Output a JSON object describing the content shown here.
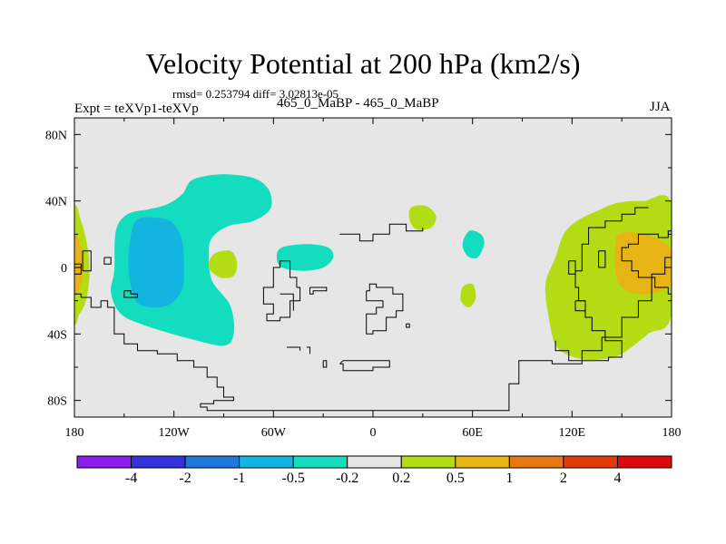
{
  "header": {
    "title": "Velocity Potential at 200 hPa (km2/s)",
    "stats": "rmsd= 0.253794 diff= 3.02813e-05",
    "expt": "Expt = teXVp1-teXVp",
    "case": "465_0_MaBP - 465_0_MaBP",
    "season": "JJA"
  },
  "chart_data": {
    "type": "heatmap",
    "title": "Velocity Potential at 200 hPa (km2/s)",
    "subtitle": "rmsd= 0.253794 diff= 3.02813e-05",
    "xlabel": "",
    "ylabel": "",
    "xlim": [
      -180,
      180
    ],
    "ylim": [
      -90,
      90
    ],
    "x_ticks": [
      {
        "value": -180,
        "label": "180"
      },
      {
        "value": -120,
        "label": "120W"
      },
      {
        "value": -60,
        "label": "60W"
      },
      {
        "value": 0,
        "label": "0"
      },
      {
        "value": 60,
        "label": "60E"
      },
      {
        "value": 120,
        "label": "120E"
      },
      {
        "value": 180,
        "label": "180"
      }
    ],
    "y_ticks": [
      {
        "value": 80,
        "label": "80N"
      },
      {
        "value": 40,
        "label": "40N"
      },
      {
        "value": 0,
        "label": "0"
      },
      {
        "value": -40,
        "label": "40S"
      },
      {
        "value": -80,
        "label": "80S"
      }
    ],
    "colorbar": {
      "colors": [
        "#8b1de8",
        "#3232d8",
        "#1e78dc",
        "#14b4e0",
        "#14dcbe",
        "#e6e6e6",
        "#b4dc14",
        "#e6b414",
        "#e67814",
        "#e03c0a",
        "#dc0a0a"
      ],
      "labels": [
        "-4",
        "-2",
        "-1",
        "-0.5",
        "-0.2",
        "0.2",
        "0.5",
        "1",
        "2",
        "4"
      ]
    },
    "regions": [
      {
        "name": "positive-west-edge",
        "level": "0.2 to 0.5",
        "points": [
          [
            -180,
            34
          ],
          [
            -176,
            28
          ],
          [
            -172,
            12
          ],
          [
            -171,
            -5
          ],
          [
            -173,
            -20
          ],
          [
            -177,
            -28
          ],
          [
            -180,
            -30
          ]
        ]
      },
      {
        "name": "orange-west-edge",
        "level": "0.5 to 1",
        "points": [
          [
            -180,
            18
          ],
          [
            -176,
            13
          ],
          [
            -175,
            0
          ],
          [
            -176,
            -10
          ],
          [
            -180,
            -15
          ]
        ]
      },
      {
        "name": "negative-large-pacific",
        "level": "-0.5 to -0.2",
        "points": [
          [
            -115,
            44
          ],
          [
            -110,
            52
          ],
          [
            -101,
            55
          ],
          [
            -90,
            56
          ],
          [
            -77,
            55
          ],
          [
            -68,
            52
          ],
          [
            -62,
            45
          ],
          [
            -62,
            35
          ],
          [
            -72,
            28
          ],
          [
            -87,
            25
          ],
          [
            -97,
            18
          ],
          [
            -99,
            8
          ],
          [
            -97,
            -8
          ],
          [
            -86,
            -23
          ],
          [
            -84,
            -40
          ],
          [
            -90,
            -47
          ],
          [
            -110,
            -43
          ],
          [
            -137,
            -35
          ],
          [
            -152,
            -28
          ],
          [
            -158,
            -15
          ],
          [
            -156,
            -2
          ],
          [
            -155,
            22
          ],
          [
            -148,
            32
          ],
          [
            -135,
            35
          ],
          [
            -124,
            38
          ]
        ]
      },
      {
        "name": "negative-core",
        "level": "-1 to -0.5",
        "points": [
          [
            -143,
            28
          ],
          [
            -132,
            30
          ],
          [
            -121,
            27
          ],
          [
            -115,
            16
          ],
          [
            -114,
            -2
          ],
          [
            -115,
            -13
          ],
          [
            -122,
            -22
          ],
          [
            -134,
            -24
          ],
          [
            -143,
            -20
          ],
          [
            -147,
            -5
          ],
          [
            -147,
            12
          ]
        ]
      },
      {
        "name": "negative-atlantic",
        "level": "-0.5 to -0.2",
        "points": [
          [
            -55,
            12
          ],
          [
            -40,
            14
          ],
          [
            -27,
            12
          ],
          [
            -24,
            6
          ],
          [
            -30,
            0
          ],
          [
            -42,
            -2
          ],
          [
            -55,
            0
          ],
          [
            -58,
            6
          ]
        ]
      },
      {
        "name": "negative-arabia",
        "level": "-0.5 to -0.2",
        "points": [
          [
            58,
            22
          ],
          [
            65,
            20
          ],
          [
            67,
            14
          ],
          [
            63,
            6
          ],
          [
            57,
            7
          ],
          [
            54,
            14
          ]
        ]
      },
      {
        "name": "positive-mediterranean",
        "level": "0.2 to 0.5",
        "points": [
          [
            23,
            36
          ],
          [
            32,
            37
          ],
          [
            38,
            31
          ],
          [
            35,
            24
          ],
          [
            26,
            23
          ],
          [
            22,
            29
          ]
        ]
      },
      {
        "name": "positive-atlantic-small",
        "level": "0.2 to 0.5",
        "points": [
          [
            -96,
            8
          ],
          [
            -86,
            10
          ],
          [
            -82,
            3
          ],
          [
            -84,
            -5
          ],
          [
            -92,
            -6
          ],
          [
            -99,
            0
          ]
        ]
      },
      {
        "name": "positive-indian-small",
        "level": "0.2 to 0.5",
        "points": [
          [
            54,
            -12
          ],
          [
            60,
            -10
          ],
          [
            62,
            -18
          ],
          [
            58,
            -24
          ],
          [
            53,
            -20
          ]
        ]
      },
      {
        "name": "positive-west-pacific",
        "level": "0.2 to 0.5",
        "points": [
          [
            123,
            28
          ],
          [
            135,
            34
          ],
          [
            148,
            39
          ],
          [
            163,
            40
          ],
          [
            180,
            38
          ],
          [
            180,
            -28
          ],
          [
            166,
            -40
          ],
          [
            150,
            -52
          ],
          [
            140,
            -55
          ],
          [
            125,
            -55
          ],
          [
            111,
            -48
          ],
          [
            106,
            -30
          ],
          [
            104,
            -10
          ],
          [
            110,
            6
          ],
          [
            115,
            20
          ]
        ]
      },
      {
        "name": "orange-west-pacific",
        "level": "0.5 to 1",
        "points": [
          [
            148,
            20
          ],
          [
            158,
            21
          ],
          [
            170,
            18
          ],
          [
            180,
            10
          ],
          [
            180,
            -8
          ],
          [
            172,
            -15
          ],
          [
            160,
            -16
          ],
          [
            150,
            -12
          ],
          [
            146,
            -2
          ],
          [
            146,
            12
          ]
        ]
      }
    ]
  }
}
